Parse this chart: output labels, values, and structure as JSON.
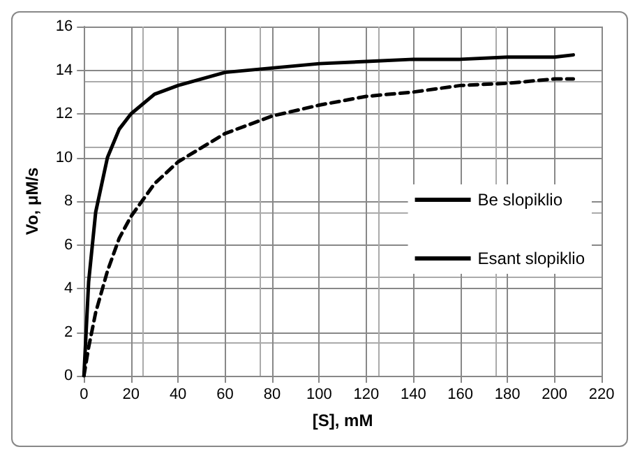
{
  "chart_data": {
    "type": "line",
    "xlabel": "[S], mM",
    "ylabel": "Vo, μM/s",
    "xlim": [
      0,
      220
    ],
    "xticks": [
      0,
      20,
      40,
      60,
      80,
      100,
      120,
      140,
      160,
      180,
      200,
      220
    ],
    "ylim": [
      0,
      16
    ],
    "yticks": [
      0,
      2,
      4,
      6,
      8,
      10,
      12,
      14,
      16
    ],
    "grid": true,
    "legend": "right",
    "marker": "none",
    "series": [
      {
        "name": "Be slopiklio",
        "color": "#000000",
        "line_style": "solid",
        "x": [
          0,
          2,
          5,
          10,
          15,
          20,
          30,
          40,
          60,
          80,
          100,
          120,
          140,
          160,
          180,
          200,
          208
        ],
        "values": [
          0,
          4.3,
          7.5,
          10,
          11.3,
          12,
          12.9,
          13.3,
          13.9,
          14.1,
          14.3,
          14.4,
          14.5,
          14.5,
          14.6,
          14.6,
          14.7
        ]
      },
      {
        "name": "Esant slopiklio",
        "color": "#000000",
        "line_style": "dashed",
        "x": [
          0,
          2,
          5,
          10,
          15,
          20,
          30,
          40,
          60,
          80,
          100,
          120,
          140,
          160,
          180,
          200,
          208
        ],
        "values": [
          0,
          1.3,
          2.9,
          4.8,
          6.3,
          7.3,
          8.8,
          9.8,
          11.1,
          11.9,
          12.4,
          12.8,
          13,
          13.3,
          13.4,
          13.6,
          13.6
        ]
      }
    ]
  }
}
